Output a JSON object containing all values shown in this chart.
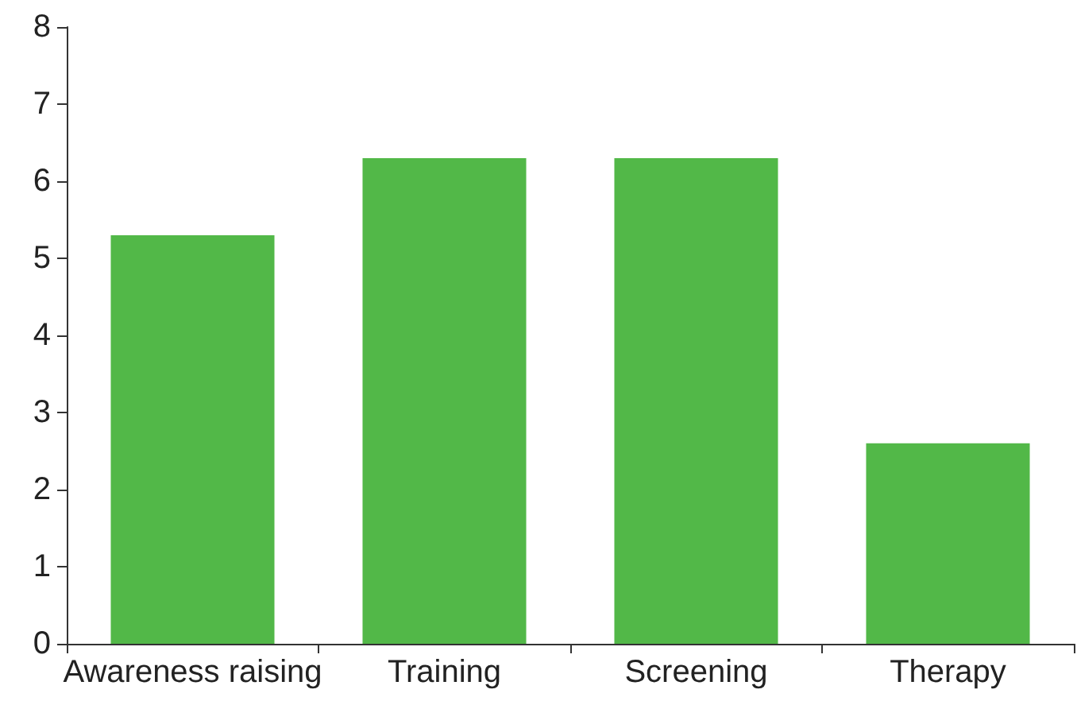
{
  "chart_data": {
    "type": "bar",
    "categories": [
      "Awareness raising",
      "Training",
      "Screening",
      "Therapy"
    ],
    "values": [
      5.3,
      6.3,
      6.3,
      2.6
    ],
    "color": "#52b848",
    "ylim": [
      0,
      8
    ],
    "yticks": [
      0,
      1,
      2,
      3,
      4,
      5,
      6,
      7,
      8
    ]
  }
}
